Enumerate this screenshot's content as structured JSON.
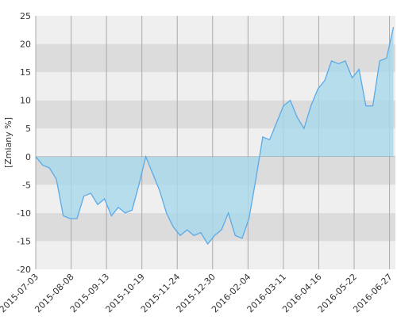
{
  "chart_data": {
    "type": "line",
    "y_label": "[Zmiany %]",
    "x": [
      "2015-07-03",
      "2015-07-10",
      "2015-07-17",
      "2015-07-24",
      "2015-07-31",
      "2015-08-07",
      "2015-08-14",
      "2015-08-21",
      "2015-08-28",
      "2015-09-04",
      "2015-09-11",
      "2015-09-18",
      "2015-09-25",
      "2015-10-02",
      "2015-10-09",
      "2015-10-16",
      "2015-10-23",
      "2015-10-30",
      "2015-11-06",
      "2015-11-13",
      "2015-11-20",
      "2015-11-27",
      "2015-12-04",
      "2015-12-11",
      "2015-12-18",
      "2015-12-25",
      "2016-01-01",
      "2016-01-08",
      "2016-01-15",
      "2016-01-22",
      "2016-01-29",
      "2016-02-05",
      "2016-02-12",
      "2016-02-19",
      "2016-02-26",
      "2016-03-04",
      "2016-03-11",
      "2016-03-18",
      "2016-03-25",
      "2016-04-01",
      "2016-04-08",
      "2016-04-15",
      "2016-04-22",
      "2016-04-29",
      "2016-05-06",
      "2016-05-13",
      "2016-05-20",
      "2016-05-27",
      "2016-06-03",
      "2016-06-10",
      "2016-06-17",
      "2016-06-24",
      "2016-07-01"
    ],
    "series": [
      {
        "color": "#5aaae8",
        "values": [
          0,
          -1.5,
          -2,
          -4,
          -10.5,
          -11,
          -11,
          -7,
          -6.5,
          -8.5,
          -7.5,
          -10.5,
          -9,
          -10,
          -9.5,
          -5,
          0,
          -3,
          -6,
          -10,
          -12.5,
          -14,
          -13,
          -14,
          -13.5,
          -15.5,
          -14,
          -13,
          -10,
          -14,
          -14.5,
          -11,
          -4,
          3.5,
          3,
          6,
          9,
          10,
          7,
          5,
          9,
          12,
          13.5,
          17,
          16.5,
          17,
          14,
          15.5,
          9,
          9,
          17,
          17.5,
          23
        ]
      }
    ],
    "xlim": [
      "2015-07-03",
      "2016-07-03"
    ],
    "xticks": [
      "2015-07-03",
      "2015-08-08",
      "2015-09-13",
      "2015-10-19",
      "2015-11-24",
      "2015-12-30",
      "2016-02-04",
      "2016-03-11",
      "2016-04-16",
      "2016-05-22",
      "2016-06-27"
    ],
    "ylim": [
      -20,
      25
    ],
    "yticks": [
      -20,
      -15,
      -10,
      -5,
      0,
      5,
      10,
      15,
      20,
      25
    ],
    "area_color": "#a8d8ea",
    "grid": true
  }
}
